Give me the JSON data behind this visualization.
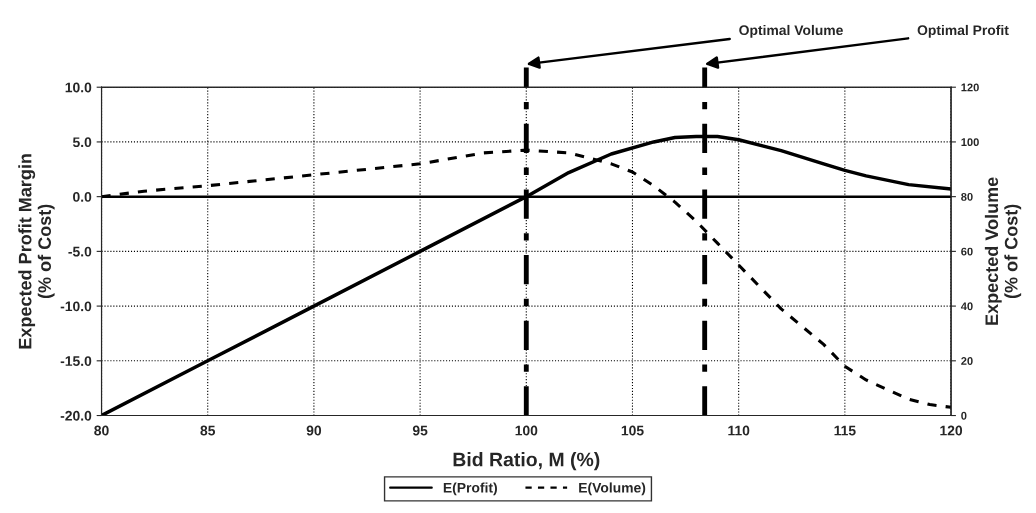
{
  "chart_data": {
    "type": "line",
    "xlabel": "Bid Ratio, M (%)",
    "ylabel": "Expected Profit Margin\n(% of Cost)",
    "y2label": "Expected Volume\n(% of Cost)",
    "series": [
      {
        "name": "E(Profit)",
        "color": "#000000",
        "line_style": "solid",
        "x": [
          80,
          85,
          90,
          95,
          100,
          102,
          104,
          106,
          107,
          108,
          109,
          110,
          112,
          114,
          115,
          116,
          118,
          120
        ],
        "values": [
          -20,
          -15,
          -10,
          -5,
          0,
          2.2,
          3.9,
          5.0,
          5.4,
          5.5,
          5.5,
          5.2,
          4.2,
          3.0,
          2.4,
          1.9,
          1.1,
          0.7
        ]
      },
      {
        "name": "E(Volume)",
        "color": "#000000",
        "line_style": "dashed",
        "axis": "y2",
        "x": [
          80,
          82,
          85,
          90,
          95,
          98,
          100,
          102,
          104,
          105,
          106,
          107,
          108,
          109,
          110,
          112,
          114,
          115,
          116,
          118,
          119,
          120
        ],
        "values": [
          80,
          82,
          84,
          88,
          92,
          96,
          97,
          96,
          92,
          89,
          84,
          78,
          71,
          63,
          55,
          39,
          26,
          18,
          13,
          6,
          4,
          3
        ]
      }
    ],
    "xlim": [
      80,
      120
    ],
    "xticks": [
      80,
      85,
      90,
      95,
      100,
      105,
      110,
      115,
      120
    ],
    "ylim": [
      -20,
      10
    ],
    "yticks": [
      {
        "value": -20,
        "label": "-20.0"
      },
      {
        "value": -15,
        "label": "-15.0"
      },
      {
        "value": -10,
        "label": "-10.0"
      },
      {
        "value": -5,
        "label": "-5.0"
      },
      {
        "value": 0,
        "label": "0.0"
      },
      {
        "value": 5,
        "label": "5.0"
      },
      {
        "value": 10,
        "label": "10.0"
      }
    ],
    "y2lim": [
      0,
      120
    ],
    "y2ticks": [
      0,
      20,
      40,
      60,
      80,
      100,
      120
    ],
    "ref_lines": [
      {
        "axis": "y",
        "value": 0,
        "color": "#000000",
        "line_style": "solid"
      },
      {
        "axis": "x",
        "value": 100,
        "label": "Optimal Volume",
        "color": "#000000",
        "line_style": "dashdot"
      },
      {
        "axis": "x",
        "value": 108.4,
        "label": "Optimal Profit",
        "color": "#000000",
        "line_style": "dashdot"
      }
    ],
    "grid": true,
    "legend": "bottom"
  }
}
